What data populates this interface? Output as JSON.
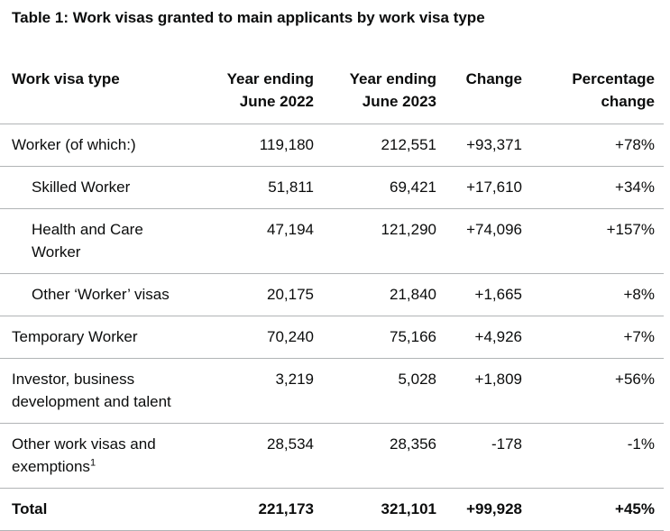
{
  "title": "Table 1: Work visas granted to main applicants by work visa type",
  "table": {
    "header": [
      "Work visa type",
      "Year ending June 2022",
      "Year ending June 2023",
      "Change",
      "Percentage change"
    ],
    "rows": [
      [
        "Worker (of which:)",
        "119,180",
        "212,551",
        "+93,371",
        "+78%"
      ],
      [
        "Skilled Worker",
        "51,811",
        "69,421",
        "+17,610",
        "+34%"
      ],
      [
        "Health and Care Worker",
        "47,194",
        "121,290",
        "+74,096",
        "+157%"
      ],
      [
        "Other ‘Worker’ visas",
        "20,175",
        "21,840",
        "+1,665",
        "+8%"
      ],
      [
        "Temporary Worker",
        "70,240",
        "75,166",
        "+4,926",
        "+7%"
      ],
      [
        "Investor, business development and talent",
        "3,219",
        "5,028",
        "+1,809",
        "+56%"
      ],
      [
        "Other work visas and exemptions",
        "28,534",
        "28,356",
        "-178",
        "-1%"
      ],
      [
        "Total",
        "221,173",
        "321,101",
        "+99,928",
        "+45%"
      ]
    ],
    "footnote_marker": "1"
  }
}
